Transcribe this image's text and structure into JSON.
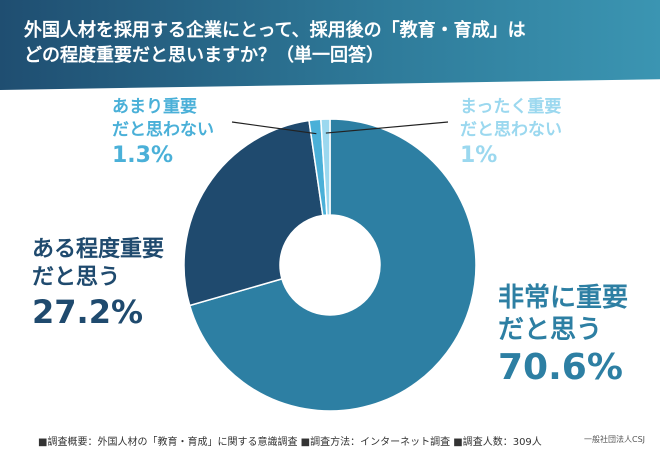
{
  "title": {
    "line1": "外国人材を採用する企業にとって、採用後の「教育・育成」は",
    "line2": "どの程度重要だと思いますか？（単一回答）"
  },
  "chart_data": {
    "type": "pie",
    "slices": [
      {
        "line1": "非常に重要",
        "line2": "だと思う",
        "value_label": "70.6%",
        "value": 70.6,
        "color": "#2d7fa3"
      },
      {
        "line1": "ある程度重要",
        "line2": "だと思う",
        "value_label": "27.2%",
        "value": 27.2,
        "color": "#1f4a6e"
      },
      {
        "line1": "あまり重要",
        "line2": "だと思わない",
        "value_label": "1.3%",
        "value": 1.3,
        "color": "#4ab0d8"
      },
      {
        "line1": "まったく重要",
        "line2": "だと思わない",
        "value_label": "1%",
        "value": 1.0,
        "color": "#9bd8ef"
      }
    ]
  },
  "footer": {
    "note": "■調査概要：外国人材の「教育・育成」に関する意識調査 ■調査方法：インターネット調査 ■調査人数：309人",
    "credit": "一般社団法人CSJ"
  },
  "colors": {
    "header_start": "#1f4e71",
    "header_end": "#3b95b2"
  }
}
